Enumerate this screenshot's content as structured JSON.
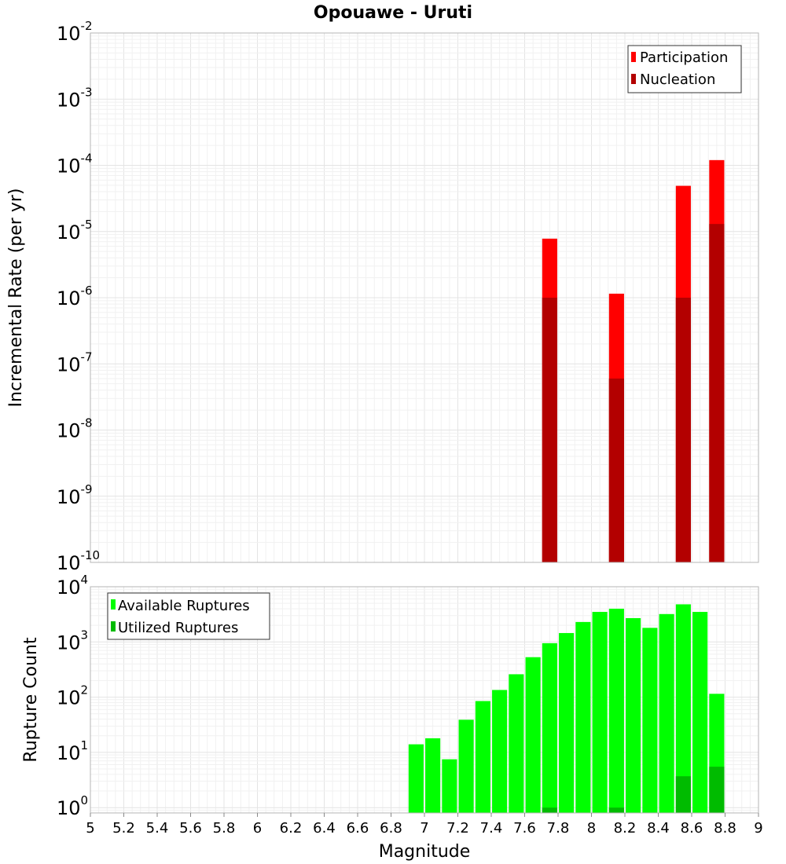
{
  "chart_data": [
    {
      "type": "bar",
      "title": "Opouawe - Uruti",
      "xlabel": "",
      "ylabel": "Incremental Rate (per yr)",
      "y_scale": "log",
      "ylim": [
        1e-10,
        0.01
      ],
      "xlim": [
        5,
        9
      ],
      "y_ticks": [
        {
          "base": "10",
          "exp": "-2"
        },
        {
          "base": "10",
          "exp": "-3"
        },
        {
          "base": "10",
          "exp": "-4"
        },
        {
          "base": "10",
          "exp": "-5"
        },
        {
          "base": "10",
          "exp": "-6"
        },
        {
          "base": "10",
          "exp": "-7"
        },
        {
          "base": "10",
          "exp": "-8"
        },
        {
          "base": "10",
          "exp": "-9"
        },
        {
          "base": "10",
          "exp": "-10"
        }
      ],
      "grid": true,
      "legend_position": "top-right",
      "series": [
        {
          "name": "Participation",
          "color": "#ff0000",
          "x": [
            7.75,
            8.15,
            8.55,
            8.75
          ],
          "values": [
            7.8e-06,
            1.15e-06,
            4.9e-05,
            0.00012
          ]
        },
        {
          "name": "Nucleation",
          "color": "#b30000",
          "x": [
            7.75,
            8.15,
            8.55,
            8.75
          ],
          "values": [
            1e-06,
            6e-08,
            1e-06,
            1.3e-05
          ]
        }
      ]
    },
    {
      "type": "bar",
      "title": "",
      "xlabel": "Magnitude",
      "ylabel": "Rupture Count",
      "y_scale": "log",
      "ylim": [
        0.8,
        10000
      ],
      "xlim": [
        5,
        9
      ],
      "y_ticks": [
        {
          "base": "10",
          "exp": "4"
        },
        {
          "base": "10",
          "exp": "3"
        },
        {
          "base": "10",
          "exp": "2"
        },
        {
          "base": "10",
          "exp": "1"
        },
        {
          "base": "10",
          "exp": "0"
        }
      ],
      "x_ticks": [
        "5",
        "5.2",
        "5.4",
        "5.6",
        "5.8",
        "6",
        "6.2",
        "6.4",
        "6.6",
        "6.8",
        "7",
        "7.2",
        "7.4",
        "7.6",
        "7.8",
        "8",
        "8.2",
        "8.4",
        "8.6",
        "8.8",
        "9"
      ],
      "grid": true,
      "legend_position": "top-left",
      "series": [
        {
          "name": "Available Ruptures",
          "color": "#00ff00",
          "x": [
            6.95,
            7.05,
            7.15,
            7.25,
            7.35,
            7.45,
            7.55,
            7.65,
            7.75,
            7.85,
            7.95,
            8.05,
            8.15,
            8.25,
            8.35,
            8.45,
            8.55,
            8.65,
            8.75
          ],
          "values": [
            14,
            18,
            7.5,
            39,
            85,
            135,
            260,
            530,
            950,
            1450,
            2300,
            3500,
            4000,
            2700,
            1800,
            3200,
            4800,
            3500,
            115
          ]
        },
        {
          "name": "Utilized Ruptures",
          "color": "#00bb00",
          "x": [
            7.75,
            8.15,
            8.55,
            8.75
          ],
          "values": [
            1,
            1,
            3.7,
            5.5
          ]
        }
      ]
    }
  ]
}
